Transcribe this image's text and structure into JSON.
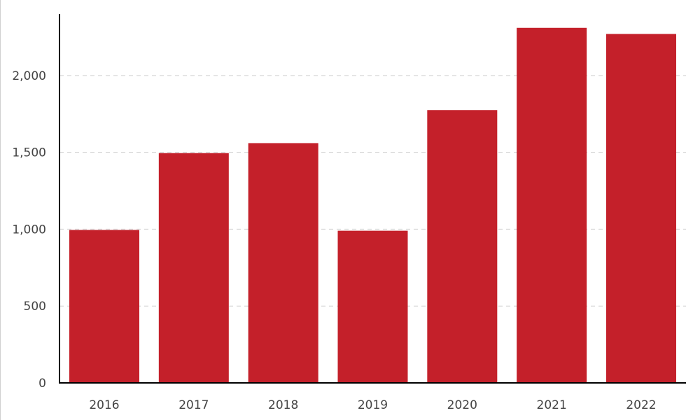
{
  "chart_data": {
    "type": "bar",
    "categories": [
      "2016",
      "2017",
      "2018",
      "2019",
      "2020",
      "2021",
      "2022"
    ],
    "values": [
      995,
      1495,
      1560,
      990,
      1775,
      2310,
      2270
    ],
    "title": "",
    "xlabel": "",
    "ylabel": "",
    "ylim": [
      0,
      2400
    ],
    "yticks": [
      0,
      500,
      1000,
      1500,
      2000
    ],
    "ytick_labels": [
      "0",
      "500",
      "1,000",
      "1,500",
      "2,000"
    ],
    "grid": true,
    "legend": "none",
    "colors": {
      "bar": "#c4202a"
    }
  }
}
